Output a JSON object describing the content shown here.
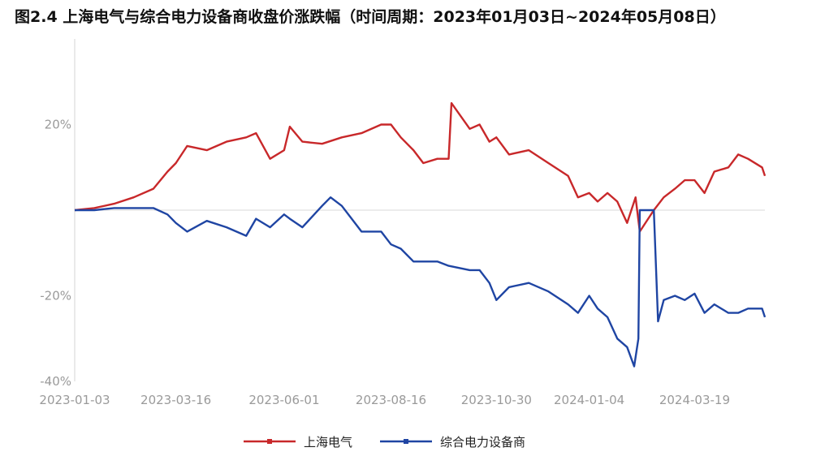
{
  "title": "图2.4 上海电气与综合电力设备商收盘价涨跌幅（时间周期：2023年01月03日~2024年05月08日）",
  "chart_data": {
    "type": "line",
    "ylim": [
      -40,
      40
    ],
    "y_ticks": [
      "-40%",
      "-20%",
      "20%"
    ],
    "y_tick_values": [
      -40,
      -20,
      20
    ],
    "x_ticks": [
      "2023-01-03",
      "2023-03-16",
      "2023-06-01",
      "2023-08-16",
      "2023-10-30",
      "2024-01-04",
      "2024-03-19"
    ],
    "x_range": [
      "2023-01-03",
      "2024-05-08"
    ],
    "grid": false,
    "legend_position": "bottom-center",
    "series": [
      {
        "name": "上海电气",
        "color": "#c8282a",
        "points": [
          [
            "2023-01-03",
            0
          ],
          [
            "2023-01-17",
            0.5
          ],
          [
            "2023-01-31",
            1.5
          ],
          [
            "2023-02-14",
            3
          ],
          [
            "2023-02-28",
            5
          ],
          [
            "2023-03-10",
            9
          ],
          [
            "2023-03-16",
            11
          ],
          [
            "2023-03-24",
            15
          ],
          [
            "2023-04-07",
            14
          ],
          [
            "2023-04-21",
            16
          ],
          [
            "2023-05-05",
            17
          ],
          [
            "2023-05-12",
            18
          ],
          [
            "2023-05-22",
            12
          ],
          [
            "2023-06-01",
            14
          ],
          [
            "2023-06-05",
            19.5
          ],
          [
            "2023-06-14",
            16
          ],
          [
            "2023-06-28",
            15.5
          ],
          [
            "2023-07-12",
            17
          ],
          [
            "2023-07-26",
            18
          ],
          [
            "2023-08-09",
            20
          ],
          [
            "2023-08-16",
            20
          ],
          [
            "2023-08-23",
            17
          ],
          [
            "2023-09-01",
            14
          ],
          [
            "2023-09-08",
            11
          ],
          [
            "2023-09-18",
            12
          ],
          [
            "2023-09-26",
            12
          ],
          [
            "2023-09-28",
            25
          ],
          [
            "2023-10-11",
            19
          ],
          [
            "2023-10-18",
            20
          ],
          [
            "2023-10-25",
            16
          ],
          [
            "2023-10-30",
            17
          ],
          [
            "2023-11-08",
            13
          ],
          [
            "2023-11-22",
            14
          ],
          [
            "2023-12-06",
            11
          ],
          [
            "2023-12-20",
            8
          ],
          [
            "2023-12-27",
            3
          ],
          [
            "2024-01-04",
            4
          ],
          [
            "2024-01-10",
            2
          ],
          [
            "2024-01-17",
            4
          ],
          [
            "2024-01-24",
            2
          ],
          [
            "2024-01-31",
            -3
          ],
          [
            "2024-02-06",
            3
          ],
          [
            "2024-02-09",
            -5
          ],
          [
            "2024-02-19",
            0
          ],
          [
            "2024-02-26",
            3
          ],
          [
            "2024-03-05",
            5
          ],
          [
            "2024-03-12",
            7
          ],
          [
            "2024-03-19",
            7
          ],
          [
            "2024-03-26",
            4
          ],
          [
            "2024-04-02",
            9
          ],
          [
            "2024-04-12",
            10
          ],
          [
            "2024-04-19",
            13
          ],
          [
            "2024-04-26",
            12
          ],
          [
            "2024-05-06",
            10
          ],
          [
            "2024-05-08",
            8
          ]
        ]
      },
      {
        "name": "综合电力设备商",
        "color": "#1f45a3",
        "points": [
          [
            "2023-01-03",
            0
          ],
          [
            "2023-01-17",
            0
          ],
          [
            "2023-01-31",
            0.5
          ],
          [
            "2023-02-14",
            0.5
          ],
          [
            "2023-02-28",
            0.5
          ],
          [
            "2023-03-10",
            -1
          ],
          [
            "2023-03-16",
            -3
          ],
          [
            "2023-03-24",
            -5
          ],
          [
            "2023-04-07",
            -2.5
          ],
          [
            "2023-04-21",
            -4
          ],
          [
            "2023-05-05",
            -6
          ],
          [
            "2023-05-12",
            -2
          ],
          [
            "2023-05-22",
            -4
          ],
          [
            "2023-06-01",
            -1
          ],
          [
            "2023-06-05",
            -2
          ],
          [
            "2023-06-14",
            -4
          ],
          [
            "2023-06-28",
            1
          ],
          [
            "2023-07-04",
            3
          ],
          [
            "2023-07-12",
            1
          ],
          [
            "2023-07-26",
            -5
          ],
          [
            "2023-08-09",
            -5
          ],
          [
            "2023-08-16",
            -8
          ],
          [
            "2023-08-23",
            -9
          ],
          [
            "2023-09-01",
            -12
          ],
          [
            "2023-09-08",
            -12
          ],
          [
            "2023-09-18",
            -12
          ],
          [
            "2023-09-26",
            -13
          ],
          [
            "2023-10-11",
            -14
          ],
          [
            "2023-10-18",
            -14
          ],
          [
            "2023-10-25",
            -17
          ],
          [
            "2023-10-30",
            -21
          ],
          [
            "2023-11-08",
            -18
          ],
          [
            "2023-11-22",
            -17
          ],
          [
            "2023-12-06",
            -19
          ],
          [
            "2023-12-20",
            -22
          ],
          [
            "2023-12-27",
            -24
          ],
          [
            "2024-01-04",
            -20
          ],
          [
            "2024-01-10",
            -23
          ],
          [
            "2024-01-17",
            -25
          ],
          [
            "2024-01-24",
            -30
          ],
          [
            "2024-01-31",
            -32
          ],
          [
            "2024-02-05",
            -36.5
          ],
          [
            "2024-02-08",
            -30
          ],
          [
            "2024-02-09",
            0
          ],
          [
            "2024-02-19",
            0
          ],
          [
            "2024-02-22",
            -26
          ],
          [
            "2024-02-26",
            -21
          ],
          [
            "2024-03-05",
            -20
          ],
          [
            "2024-03-12",
            -21
          ],
          [
            "2024-03-19",
            -19.5
          ],
          [
            "2024-03-26",
            -24
          ],
          [
            "2024-04-02",
            -22
          ],
          [
            "2024-04-12",
            -24
          ],
          [
            "2024-04-19",
            -24
          ],
          [
            "2024-04-26",
            -23
          ],
          [
            "2024-05-06",
            -23
          ],
          [
            "2024-05-08",
            -25
          ]
        ]
      }
    ]
  }
}
